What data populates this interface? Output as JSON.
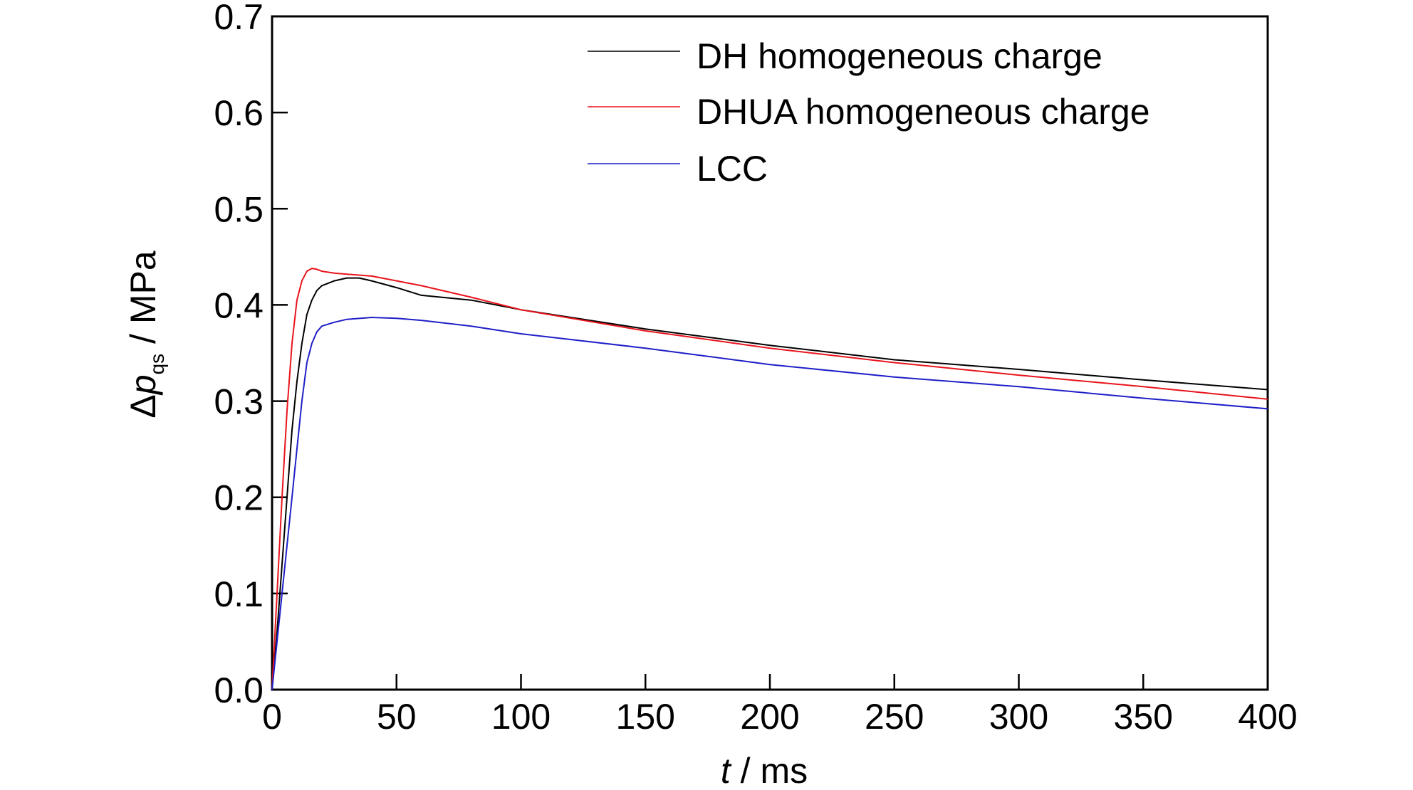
{
  "chart_data": {
    "type": "line",
    "title": "",
    "xlabel": {
      "var": "t",
      "unit": " / ms"
    },
    "ylabel": {
      "symbol": "Δ",
      "var": "p",
      "sub": "qs",
      "unit": " / MPa"
    },
    "xlim": [
      0,
      400
    ],
    "ylim": [
      0.0,
      0.7
    ],
    "xticks": [
      0,
      50,
      100,
      150,
      200,
      250,
      300,
      350,
      400
    ],
    "yticks": [
      0.0,
      0.1,
      0.2,
      0.3,
      0.4,
      0.5,
      0.6,
      0.7
    ],
    "xtick_labels": [
      "0",
      "50",
      "100",
      "150",
      "200",
      "250",
      "300",
      "350",
      "400"
    ],
    "ytick_labels": [
      "0.0",
      "0.1",
      "0.2",
      "0.3",
      "0.4",
      "0.5",
      "0.6",
      "0.7"
    ],
    "grid": false,
    "legend_position": "top-right",
    "series": [
      {
        "name": "DH homogeneous charge",
        "color": "#000000",
        "x": [
          0,
          2,
          4,
          6,
          8,
          10,
          12,
          14,
          16,
          18,
          20,
          25,
          30,
          35,
          40,
          50,
          60,
          80,
          100,
          150,
          200,
          250,
          300,
          350,
          400
        ],
        "y": [
          0.0,
          0.06,
          0.13,
          0.2,
          0.27,
          0.32,
          0.36,
          0.39,
          0.405,
          0.415,
          0.42,
          0.425,
          0.428,
          0.428,
          0.425,
          0.418,
          0.41,
          0.405,
          0.395,
          0.375,
          0.358,
          0.343,
          0.333,
          0.322,
          0.312
        ]
      },
      {
        "name": "DHUA homogeneous charge",
        "color": "#e8141c",
        "x": [
          0,
          2,
          4,
          6,
          8,
          10,
          12,
          14,
          16,
          18,
          20,
          25,
          30,
          40,
          50,
          60,
          80,
          100,
          150,
          200,
          250,
          300,
          350,
          400
        ],
        "y": [
          0.0,
          0.1,
          0.2,
          0.29,
          0.36,
          0.405,
          0.425,
          0.435,
          0.438,
          0.437,
          0.435,
          0.433,
          0.432,
          0.43,
          0.425,
          0.42,
          0.408,
          0.395,
          0.373,
          0.355,
          0.34,
          0.327,
          0.315,
          0.302
        ]
      },
      {
        "name": "LCC",
        "color": "#1f1fc8",
        "x": [
          0,
          2,
          4,
          6,
          8,
          10,
          12,
          14,
          16,
          18,
          20,
          25,
          30,
          40,
          50,
          60,
          80,
          100,
          150,
          200,
          250,
          300,
          350,
          400
        ],
        "y": [
          0.0,
          0.05,
          0.1,
          0.15,
          0.2,
          0.25,
          0.3,
          0.34,
          0.36,
          0.372,
          0.378,
          0.382,
          0.385,
          0.387,
          0.386,
          0.384,
          0.378,
          0.37,
          0.355,
          0.338,
          0.325,
          0.315,
          0.303,
          0.292
        ]
      }
    ]
  }
}
